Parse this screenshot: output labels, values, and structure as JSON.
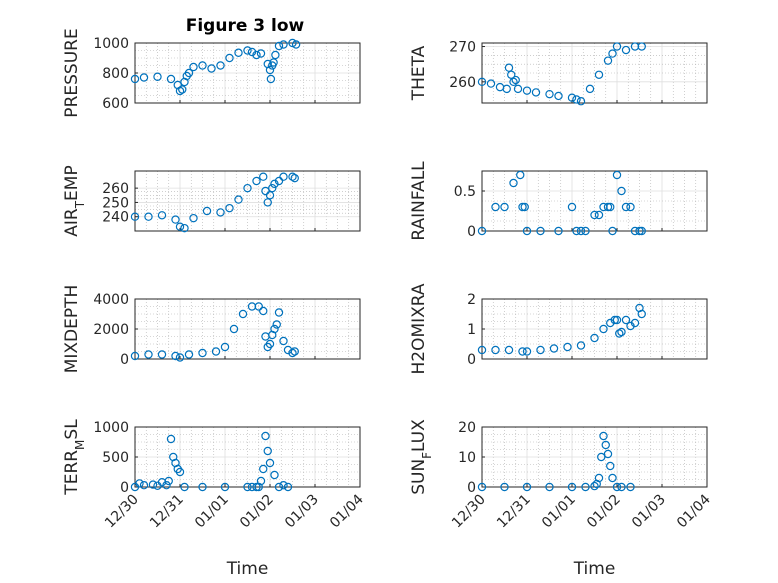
{
  "figure": {
    "title": "Figure 3 low"
  },
  "colors": {
    "series": "#0072bd",
    "axis": "#262626",
    "grid": "#dfdfdf",
    "minor_grid": "#b0b0b0"
  },
  "chart_data": [
    {
      "type": "scatter",
      "ylabel": "PRESSURE",
      "xlabel": "",
      "xlim": [
        "12/30",
        "01/04"
      ],
      "ylim": [
        600,
        1000
      ],
      "ytick_labels": [
        "600",
        "800",
        "1000"
      ],
      "grid": "on",
      "x": [
        0,
        0.2,
        0.5,
        0.8,
        0.95,
        1.0,
        1.05,
        1.1,
        1.15,
        1.2,
        1.3,
        1.5,
        1.7,
        1.9,
        2.1,
        2.3,
        2.5,
        2.6,
        2.7,
        2.8,
        2.95,
        3.0,
        3.02,
        3.05,
        3.08,
        3.12,
        3.2,
        3.3,
        3.5,
        3.58
      ],
      "y": [
        760,
        770,
        775,
        760,
        720,
        680,
        690,
        740,
        780,
        800,
        840,
        850,
        830,
        850,
        900,
        935,
        950,
        940,
        920,
        930,
        860,
        820,
        760,
        850,
        870,
        920,
        980,
        990,
        1000,
        990
      ]
    },
    {
      "type": "scatter",
      "ylabel": "THETA",
      "xlabel": "",
      "xlim": [
        "12/30",
        "01/04"
      ],
      "ylim": [
        254,
        271
      ],
      "ytick_labels": [
        "260",
        "270"
      ],
      "grid": "on",
      "x": [
        0,
        0.2,
        0.4,
        0.55,
        0.6,
        0.65,
        0.7,
        0.75,
        0.8,
        1.0,
        1.2,
        1.5,
        1.7,
        2.0,
        2.1,
        2.2,
        2.4,
        2.6,
        2.8,
        2.9,
        3.0,
        3.2,
        3.4,
        3.55
      ],
      "y": [
        260,
        259.5,
        258.5,
        258,
        264,
        262,
        260,
        260.5,
        258,
        257.5,
        257,
        256.5,
        256,
        255.5,
        255,
        254.5,
        258,
        262,
        266,
        268,
        270,
        269,
        270,
        270
      ]
    },
    {
      "type": "scatter",
      "ylabel": "AIR_TEMP",
      "xlabel": "",
      "xlim": [
        "12/30",
        "01/04"
      ],
      "ylim": [
        230,
        272
      ],
      "ytick_labels": [
        "240",
        "250",
        "260"
      ],
      "grid": "on",
      "x": [
        0,
        0.3,
        0.6,
        0.9,
        1.0,
        1.1,
        1.3,
        1.6,
        1.9,
        2.1,
        2.3,
        2.5,
        2.7,
        2.85,
        2.9,
        2.95,
        3.0,
        3.05,
        3.1,
        3.2,
        3.3,
        3.5,
        3.55
      ],
      "y": [
        240,
        240,
        241,
        238,
        233,
        232,
        239,
        244,
        243,
        246,
        252,
        260,
        265,
        268,
        258,
        250,
        255,
        260,
        263,
        265,
        268,
        268,
        267
      ]
    },
    {
      "type": "scatter",
      "ylabel": "RAINFALL",
      "xlabel": "",
      "xlim": [
        "12/30",
        "01/04"
      ],
      "ylim": [
        0,
        0.75
      ],
      "ytick_labels": [
        "0",
        "0.5"
      ],
      "grid": "on",
      "x": [
        0,
        0.3,
        0.5,
        0.7,
        0.85,
        0.9,
        0.95,
        1.0,
        1.3,
        1.7,
        2.0,
        2.1,
        2.2,
        2.3,
        2.5,
        2.6,
        2.7,
        2.8,
        2.85,
        2.9,
        3.0,
        3.1,
        3.2,
        3.3,
        3.4,
        3.5,
        3.55
      ],
      "y": [
        0,
        0.3,
        0.3,
        0.6,
        0.7,
        0.3,
        0.3,
        0,
        0,
        0,
        0.3,
        0,
        0,
        0,
        0.2,
        0.2,
        0.3,
        0.3,
        0.3,
        0,
        0.7,
        0.5,
        0.3,
        0.3,
        0,
        0,
        0
      ]
    },
    {
      "type": "scatter",
      "ylabel": "MIXDEPTH",
      "xlabel": "",
      "xlim": [
        "12/30",
        "01/04"
      ],
      "ylim": [
        0,
        4000
      ],
      "ytick_labels": [
        "0",
        "2000",
        "4000"
      ],
      "grid": "on",
      "x": [
        0,
        0.3,
        0.6,
        0.9,
        1.0,
        1.2,
        1.5,
        1.8,
        2.0,
        2.2,
        2.4,
        2.6,
        2.75,
        2.85,
        2.9,
        2.95,
        3.0,
        3.05,
        3.1,
        3.15,
        3.2,
        3.3,
        3.4,
        3.5,
        3.55
      ],
      "y": [
        200,
        300,
        300,
        200,
        100,
        300,
        400,
        500,
        800,
        2000,
        3000,
        3500,
        3500,
        3200,
        1500,
        800,
        1000,
        1600,
        2000,
        2300,
        3100,
        1200,
        600,
        400,
        500
      ]
    },
    {
      "type": "scatter",
      "ylabel": "H2OMIXRA",
      "xlabel": "",
      "xlim": [
        "12/30",
        "01/04"
      ],
      "ylim": [
        0,
        2
      ],
      "ytick_labels": [
        "0",
        "1",
        "2"
      ],
      "grid": "on",
      "x": [
        0,
        0.3,
        0.6,
        0.9,
        1.0,
        1.3,
        1.6,
        1.9,
        2.2,
        2.5,
        2.7,
        2.85,
        2.95,
        3.0,
        3.05,
        3.1,
        3.2,
        3.3,
        3.4,
        3.5,
        3.55
      ],
      "y": [
        0.3,
        0.3,
        0.3,
        0.25,
        0.25,
        0.3,
        0.35,
        0.4,
        0.45,
        0.7,
        1.0,
        1.2,
        1.3,
        1.3,
        0.85,
        0.9,
        1.3,
        1.1,
        1.2,
        1.7,
        1.5
      ]
    },
    {
      "type": "scatter",
      "ylabel": "TERR_MSL",
      "xlabel": "Time",
      "xlim": [
        "12/30",
        "01/04"
      ],
      "ylim": [
        0,
        1000
      ],
      "ytick_labels": [
        "0",
        "500",
        "1000"
      ],
      "grid": "on",
      "xtick_labels": [
        "12/30",
        "12/31",
        "01/01",
        "01/02",
        "01/03",
        "01/04"
      ],
      "x": [
        0,
        0.1,
        0.2,
        0.4,
        0.5,
        0.6,
        0.7,
        0.75,
        0.8,
        0.85,
        0.9,
        0.95,
        1.0,
        1.1,
        1.5,
        2.0,
        2.5,
        2.6,
        2.7,
        2.75,
        2.8,
        2.85,
        2.9,
        2.95,
        3.0,
        3.1,
        3.2,
        3.3,
        3.4
      ],
      "y": [
        0,
        60,
        30,
        40,
        20,
        80,
        30,
        100,
        800,
        500,
        400,
        300,
        250,
        0,
        0,
        0,
        0,
        0,
        0,
        0,
        100,
        300,
        850,
        600,
        400,
        200,
        0,
        30,
        0
      ]
    },
    {
      "type": "scatter",
      "ylabel": "SUN_FLUX",
      "xlabel": "Time",
      "xlim": [
        "12/30",
        "01/04"
      ],
      "ylim": [
        0,
        20
      ],
      "ytick_labels": [
        "0",
        "10",
        "20"
      ],
      "grid": "on",
      "xtick_labels": [
        "12/30",
        "12/31",
        "01/01",
        "01/02",
        "01/03",
        "01/04"
      ],
      "x": [
        0,
        0.5,
        1.0,
        1.5,
        2.0,
        2.3,
        2.5,
        2.55,
        2.6,
        2.65,
        2.7,
        2.75,
        2.8,
        2.85,
        2.9,
        3.0,
        3.1,
        3.3
      ],
      "y": [
        0,
        0,
        0,
        0,
        0,
        0,
        0.3,
        1,
        3,
        10,
        17,
        14,
        11,
        7,
        3,
        0,
        0,
        0
      ]
    }
  ],
  "panel_labels": [
    {
      "main": "PRESSURE",
      "sub": "",
      "tail": ""
    },
    {
      "main": "THETA",
      "sub": "",
      "tail": ""
    },
    {
      "main": "AIR",
      "sub": "T",
      "tail": "EMP"
    },
    {
      "main": "RAINFALL",
      "sub": "",
      "tail": ""
    },
    {
      "main": "MIXDEPTH",
      "sub": "",
      "tail": ""
    },
    {
      "main": "H2OMIXRA",
      "sub": "",
      "tail": ""
    },
    {
      "main": "TERR",
      "sub": "M",
      "tail": "SL"
    },
    {
      "main": "SUN",
      "sub": "F",
      "tail": "LUX"
    }
  ]
}
